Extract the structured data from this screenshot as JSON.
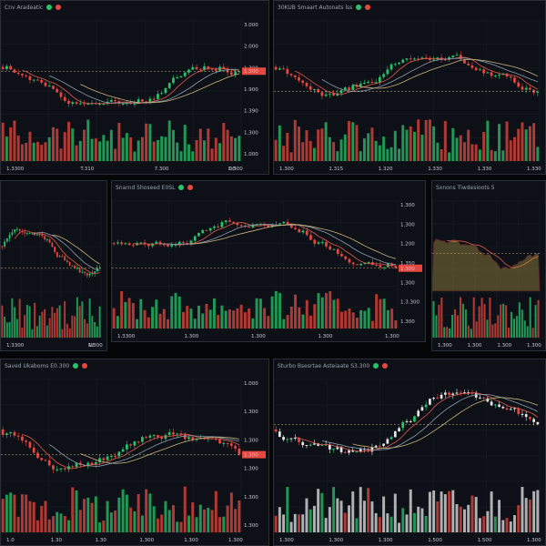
{
  "colors": {
    "up": "#27c46a",
    "down": "#e8473f",
    "bg": "#0d1117",
    "grid": "#1b2129",
    "text": "#c2c8d0",
    "ma1": "#e05a4e",
    "ma2": "#8a9bb0",
    "ma3": "#c7b37a"
  },
  "panels": [
    {
      "id": "p1",
      "title": "Cnv Aradeatic",
      "seed": 3,
      "ticks": [
        "3.000",
        "2.000",
        "1.300",
        "1.900",
        "1.390",
        "1.300",
        "1.000"
      ],
      "xticks": [
        "1.3300",
        "T.310",
        "7.300",
        "1.500"
      ],
      "tag": "1.300",
      "foot": "DO"
    },
    {
      "id": "p2",
      "title": "30KUB  Smaart Autonats  lss",
      "seed": 11,
      "ticks": [],
      "xticks": [
        "1.300",
        "1.315",
        "1.320",
        "1.330",
        "1.330",
        "1.330"
      ],
      "tag": "",
      "foot": ""
    },
    {
      "id": "p3",
      "title": "",
      "seed": 21,
      "ticks": [],
      "xticks": [
        "1.3300",
        "1.300"
      ],
      "tag": "",
      "foot": "NE"
    },
    {
      "id": "p4",
      "title": "Snarnd  Shoseed  E0SL",
      "seed": 5,
      "ticks": [
        "1.300",
        "1.300",
        "1.200",
        "1.350",
        "1.300",
        "1.3.300",
        "1.300"
      ],
      "xticks": [
        "1.3300",
        "1.300",
        "1.300",
        "1.300",
        "1.300"
      ],
      "tag": "1.300",
      "foot": ""
    },
    {
      "id": "p5",
      "title": "Sxnons  Tiwdesioots  5",
      "seed": 9,
      "ticks": [],
      "xticks": [
        "1.300",
        "1.300",
        "1.300",
        "1.300"
      ],
      "tag": "",
      "foot": ""
    },
    {
      "id": "p6",
      "title": "Saved  Ukaboms  E0.300",
      "seed": 17,
      "ticks": [
        "1.000",
        "1.300",
        "1.300",
        "1.300",
        "1.300",
        "1.300"
      ],
      "xticks": [
        "1.0",
        "1.30",
        "1.30",
        "1.300",
        "1.300",
        "1.300"
      ],
      "tag": "1.300",
      "foot": ""
    },
    {
      "id": "p7",
      "title": "Sturbo  Bsesrtae Asteiaate  S3.300",
      "seed": 29,
      "ticks": [],
      "xticks": [
        "1.300",
        "1.300",
        "1.300",
        "1.500",
        "1.500",
        "1.300"
      ],
      "tag": "",
      "foot": ""
    }
  ]
}
